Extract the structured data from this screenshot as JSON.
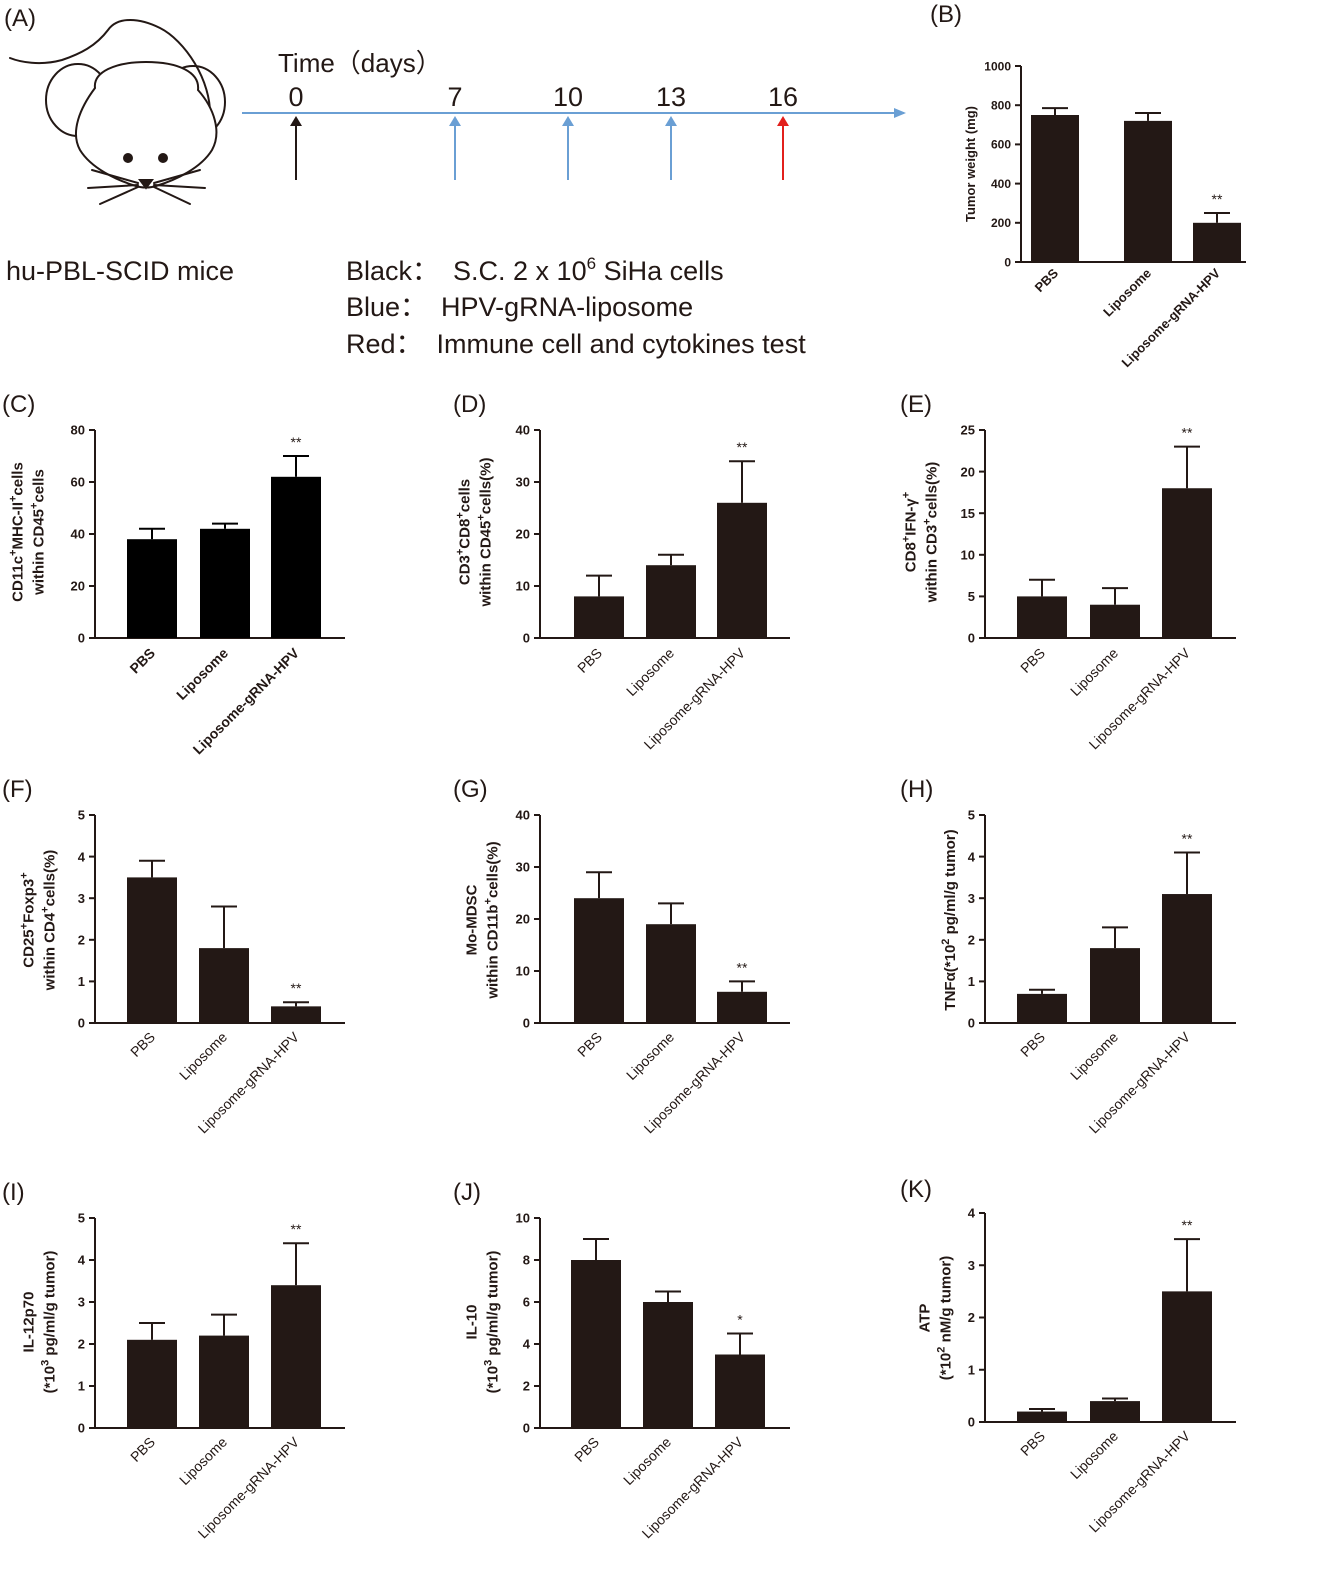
{
  "colors": {
    "bar": "#231815",
    "axis": "#231815",
    "timeline": "#6a9fd4",
    "arrow_black": "#231815",
    "arrow_blue": "#6a9fd4",
    "arrow_red": "#e2201c"
  },
  "panel_a": {
    "letter": "(A)",
    "time_label": "Time（days）",
    "mouse_label": "hu-PBL-SCID mice",
    "mouse_icon": "mouse-icon",
    "days": [
      "0",
      "7",
      "10",
      "13",
      "16"
    ],
    "arrow_colors": [
      "black",
      "blue",
      "blue",
      "blue",
      "red"
    ],
    "legend": {
      "black_key": "Black：",
      "black_prefix": "S.C. 2 x 10",
      "black_exp": "6",
      "black_suffix": " SiHa cells",
      "blue_key": "Blue：",
      "blue_text": "HPV-gRNA-liposome",
      "red_key": "Red：",
      "red_text": "Immune cell and cytokines test"
    }
  },
  "chart_data": [
    {
      "id": "B",
      "letter": "(B)",
      "type": "bar",
      "categories": [
        "PBS",
        "Liposome",
        "Liposome-gRNA-HPV"
      ],
      "values": [
        750,
        720,
        200
      ],
      "errors": [
        35,
        40,
        50
      ],
      "significance": [
        "",
        "",
        "**"
      ],
      "ylabel": "Tumor weight (mg)",
      "ylim": [
        0,
        1000
      ],
      "yticks": [
        0,
        200,
        400,
        600,
        800,
        1000
      ]
    },
    {
      "id": "C",
      "letter": "(C)",
      "type": "bar",
      "categories": [
        "PBS",
        "Liposome",
        "Liposome-gRNA-HPV"
      ],
      "values": [
        38,
        42,
        62
      ],
      "errors": [
        4,
        2,
        8
      ],
      "significance": [
        "",
        "",
        "**"
      ],
      "ylabel_lines": [
        [
          "CD11c",
          "+",
          "MHC-II",
          "+",
          "cells"
        ],
        [
          "within CD45",
          "+",
          "cells"
        ]
      ],
      "ylim": [
        0,
        80
      ],
      "yticks": [
        0,
        20,
        40,
        60,
        80
      ],
      "bar_color": "#000000"
    },
    {
      "id": "D",
      "letter": "(D)",
      "type": "bar",
      "categories": [
        "PBS",
        "Liposome",
        "Liposome-gRNA-HPV"
      ],
      "values": [
        8,
        14,
        26
      ],
      "errors": [
        4,
        2,
        8
      ],
      "significance": [
        "",
        "",
        "**"
      ],
      "ylabel_lines": [
        [
          "CD3",
          "+",
          "CD8",
          "+",
          "cells"
        ],
        [
          "within CD45",
          "+",
          "cells(%)"
        ]
      ],
      "ylim": [
        0,
        40
      ],
      "yticks": [
        0,
        10,
        20,
        30,
        40
      ]
    },
    {
      "id": "E",
      "letter": "(E)",
      "type": "bar",
      "categories": [
        "PBS",
        "Liposome",
        "Liposome-gRNA-HPV"
      ],
      "values": [
        5,
        4,
        18
      ],
      "errors": [
        2,
        2,
        5
      ],
      "significance": [
        "",
        "",
        "**"
      ],
      "ylabel_lines": [
        [
          "CD8",
          "+",
          "IFN-γ",
          "+"
        ],
        [
          "within CD3",
          "+",
          "cells(%)"
        ]
      ],
      "ylim": [
        0,
        25
      ],
      "yticks": [
        0,
        5,
        10,
        15,
        20,
        25
      ]
    },
    {
      "id": "F",
      "letter": "(F)",
      "type": "bar",
      "categories": [
        "PBS",
        "Liposome",
        "Liposome-gRNA-HPV"
      ],
      "values": [
        3.5,
        1.8,
        0.4
      ],
      "errors": [
        0.4,
        1.0,
        0.1
      ],
      "significance": [
        "",
        "",
        "**"
      ],
      "ylabel_lines": [
        [
          "CD25",
          "+",
          "Foxp3",
          "+"
        ],
        [
          "within CD4",
          "+",
          "cells(%)"
        ]
      ],
      "ylim": [
        0,
        5
      ],
      "yticks": [
        0,
        1,
        2,
        3,
        4,
        5
      ]
    },
    {
      "id": "G",
      "letter": "(G)",
      "type": "bar",
      "categories": [
        "PBS",
        "Liposome",
        "Liposome-gRNA-HPV"
      ],
      "values": [
        24,
        19,
        6
      ],
      "errors": [
        5,
        4,
        2
      ],
      "significance": [
        "",
        "",
        "**"
      ],
      "ylabel_lines": [
        [
          "Mo-MDSC"
        ],
        [
          "within CD11b",
          "+",
          "cells(%)"
        ]
      ],
      "ylim": [
        0,
        40
      ],
      "yticks": [
        0,
        10,
        20,
        30,
        40
      ]
    },
    {
      "id": "H",
      "letter": "(H)",
      "type": "bar",
      "categories": [
        "PBS",
        "Liposome",
        "Liposome-gRNA-HPV"
      ],
      "values": [
        0.7,
        1.8,
        3.1
      ],
      "errors": [
        0.1,
        0.5,
        1.0
      ],
      "significance": [
        "",
        "",
        "**"
      ],
      "ylabel_lines": [
        [
          "TNFα(*10",
          "2",
          " pg/ml/g tumor)"
        ]
      ],
      "ylim": [
        0,
        5
      ],
      "yticks": [
        0,
        1,
        2,
        3,
        4,
        5
      ]
    },
    {
      "id": "I",
      "letter": "(I)",
      "type": "bar",
      "categories": [
        "PBS",
        "Liposome",
        "Liposome-gRNA-HPV"
      ],
      "values": [
        2.1,
        2.2,
        3.4
      ],
      "errors": [
        0.4,
        0.5,
        1.0
      ],
      "significance": [
        "",
        "",
        "**"
      ],
      "ylabel_lines": [
        [
          "IL-12p70"
        ],
        [
          "(*10",
          "3",
          " pg/ml/g tumor)"
        ]
      ],
      "ylim": [
        0,
        5
      ],
      "yticks": [
        0,
        1,
        2,
        3,
        4,
        5
      ]
    },
    {
      "id": "J",
      "letter": "(J)",
      "type": "bar",
      "categories": [
        "PBS",
        "Liposome",
        "Liposome-gRNA-HPV"
      ],
      "values": [
        8,
        6,
        3.5
      ],
      "errors": [
        1,
        0.5,
        1
      ],
      "significance": [
        "",
        "",
        "*"
      ],
      "ylabel_lines": [
        [
          "IL-10"
        ],
        [
          "(*10",
          "3",
          " pg/ml/g tumor)"
        ]
      ],
      "ylim": [
        0,
        10
      ],
      "yticks": [
        0,
        2,
        4,
        6,
        8,
        10
      ]
    },
    {
      "id": "K",
      "letter": "(K)",
      "type": "bar",
      "categories": [
        "PBS",
        "Liposome",
        "Liposome-gRNA-HPV"
      ],
      "values": [
        0.2,
        0.4,
        2.5
      ],
      "errors": [
        0.05,
        0.05,
        1.0
      ],
      "significance": [
        "",
        "",
        "**"
      ],
      "ylabel_lines": [
        [
          "ATP"
        ],
        [
          "(*10",
          "2",
          " nM/g tumor)"
        ]
      ],
      "ylim": [
        0,
        4
      ],
      "yticks": [
        0,
        1,
        2,
        3,
        4
      ]
    }
  ]
}
